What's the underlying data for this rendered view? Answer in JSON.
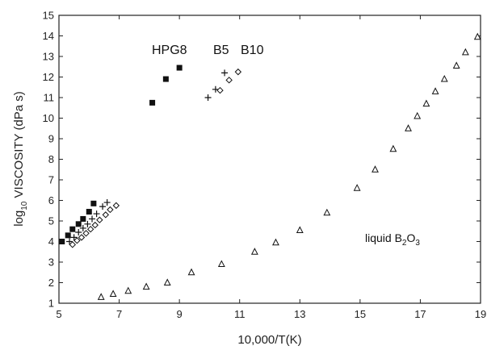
{
  "chart_data": {
    "type": "scatter",
    "title": "",
    "xlabel": "10,000/T(K)",
    "ylabel_parts": [
      "log",
      "10",
      " VISCOSITY  (dPa s)"
    ],
    "xlim": [
      5,
      19
    ],
    "ylim": [
      1,
      15
    ],
    "x_ticks": [
      "5",
      "7",
      "9",
      "11",
      "13",
      "15",
      "17",
      "19"
    ],
    "y_ticks": [
      "1",
      "2",
      "3",
      "4",
      "5",
      "6",
      "7",
      "8",
      "9",
      "10",
      "11",
      "12",
      "13",
      "14",
      "15"
    ],
    "grid": false,
    "annotations": {
      "hpg8": "HPG8",
      "b5": "B5",
      "b10": "B10",
      "b2o3_prefix": "liquid B",
      "b2o3_sub1": "2",
      "b2o3_mid": "O",
      "b2o3_sub2": "3"
    },
    "series": [
      {
        "name": "HPG8",
        "marker": "filled-square",
        "points": [
          [
            5.1,
            4.0
          ],
          [
            5.3,
            4.3
          ],
          [
            5.45,
            4.6
          ],
          [
            5.65,
            4.85
          ],
          [
            5.8,
            5.1
          ],
          [
            6.0,
            5.45
          ],
          [
            6.15,
            5.85
          ],
          [
            8.1,
            10.75
          ],
          [
            8.55,
            11.9
          ],
          [
            9.0,
            12.45
          ]
        ]
      },
      {
        "name": "B5",
        "marker": "plus",
        "points": [
          [
            5.35,
            4.0
          ],
          [
            5.5,
            4.2
          ],
          [
            5.65,
            4.45
          ],
          [
            5.8,
            4.65
          ],
          [
            5.95,
            4.85
          ],
          [
            6.1,
            5.1
          ],
          [
            6.25,
            5.35
          ],
          [
            6.45,
            5.7
          ],
          [
            6.6,
            5.9
          ],
          [
            9.95,
            11.0
          ],
          [
            10.2,
            11.4
          ],
          [
            10.5,
            12.2
          ]
        ]
      },
      {
        "name": "B10",
        "marker": "open-diamond",
        "points": [
          [
            5.45,
            3.85
          ],
          [
            5.6,
            4.05
          ],
          [
            5.75,
            4.2
          ],
          [
            5.9,
            4.4
          ],
          [
            6.05,
            4.6
          ],
          [
            6.2,
            4.8
          ],
          [
            6.35,
            5.05
          ],
          [
            6.55,
            5.3
          ],
          [
            6.7,
            5.55
          ],
          [
            6.9,
            5.75
          ],
          [
            10.35,
            11.35
          ],
          [
            10.65,
            11.85
          ],
          [
            10.95,
            12.25
          ]
        ]
      },
      {
        "name": "liquid B2O3",
        "marker": "open-triangle",
        "points": [
          [
            6.4,
            1.3
          ],
          [
            6.8,
            1.45
          ],
          [
            7.3,
            1.6
          ],
          [
            7.9,
            1.8
          ],
          [
            8.6,
            2.0
          ],
          [
            9.4,
            2.5
          ],
          [
            10.4,
            2.9
          ],
          [
            11.5,
            3.5
          ],
          [
            12.2,
            3.95
          ],
          [
            13.0,
            4.55
          ],
          [
            13.9,
            5.4
          ],
          [
            14.9,
            6.6
          ],
          [
            15.5,
            7.5
          ],
          [
            16.1,
            8.5
          ],
          [
            16.6,
            9.5
          ],
          [
            16.9,
            10.1
          ],
          [
            17.2,
            10.7
          ],
          [
            17.5,
            11.3
          ],
          [
            17.8,
            11.9
          ],
          [
            18.2,
            12.55
          ],
          [
            18.5,
            13.2
          ],
          [
            18.9,
            13.95
          ]
        ]
      }
    ]
  }
}
